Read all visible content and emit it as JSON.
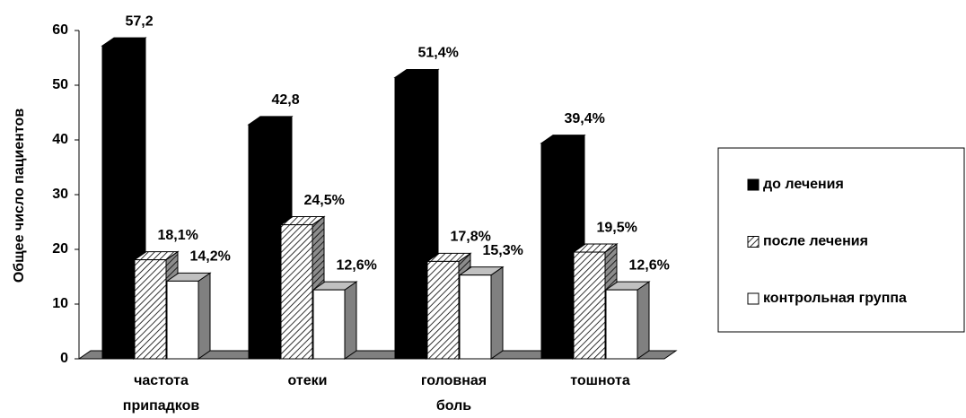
{
  "chart_data": {
    "type": "bar3d",
    "y_label": "Общее число пациентов",
    "categories": [
      "частота припадков",
      "отеки",
      "головная боль",
      "тошнота"
    ],
    "series": [
      {
        "name": "до лечения",
        "color": "#000000",
        "values": [
          57.2,
          42.8,
          51.4,
          39.4
        ],
        "value_labels": [
          "57,2",
          "42,8",
          "51,4%",
          "39,4%"
        ]
      },
      {
        "name": "после лечения",
        "color": "#ffffff",
        "hatch": true,
        "values": [
          18.1,
          24.5,
          17.8,
          19.5
        ],
        "value_labels": [
          "18,1%",
          "24,5%",
          "17,8%",
          "19,5%"
        ]
      },
      {
        "name": "контрольная группа",
        "color": "#ffffff",
        "values": [
          14.2,
          12.6,
          15.3,
          12.6
        ],
        "value_labels": [
          "14,2%",
          "12,6%",
          "15,3%",
          "12,6%"
        ]
      }
    ],
    "ylim": [
      0,
      60
    ],
    "yticks": [
      0,
      10,
      20,
      30,
      40,
      50,
      60
    ],
    "legend": "right"
  }
}
